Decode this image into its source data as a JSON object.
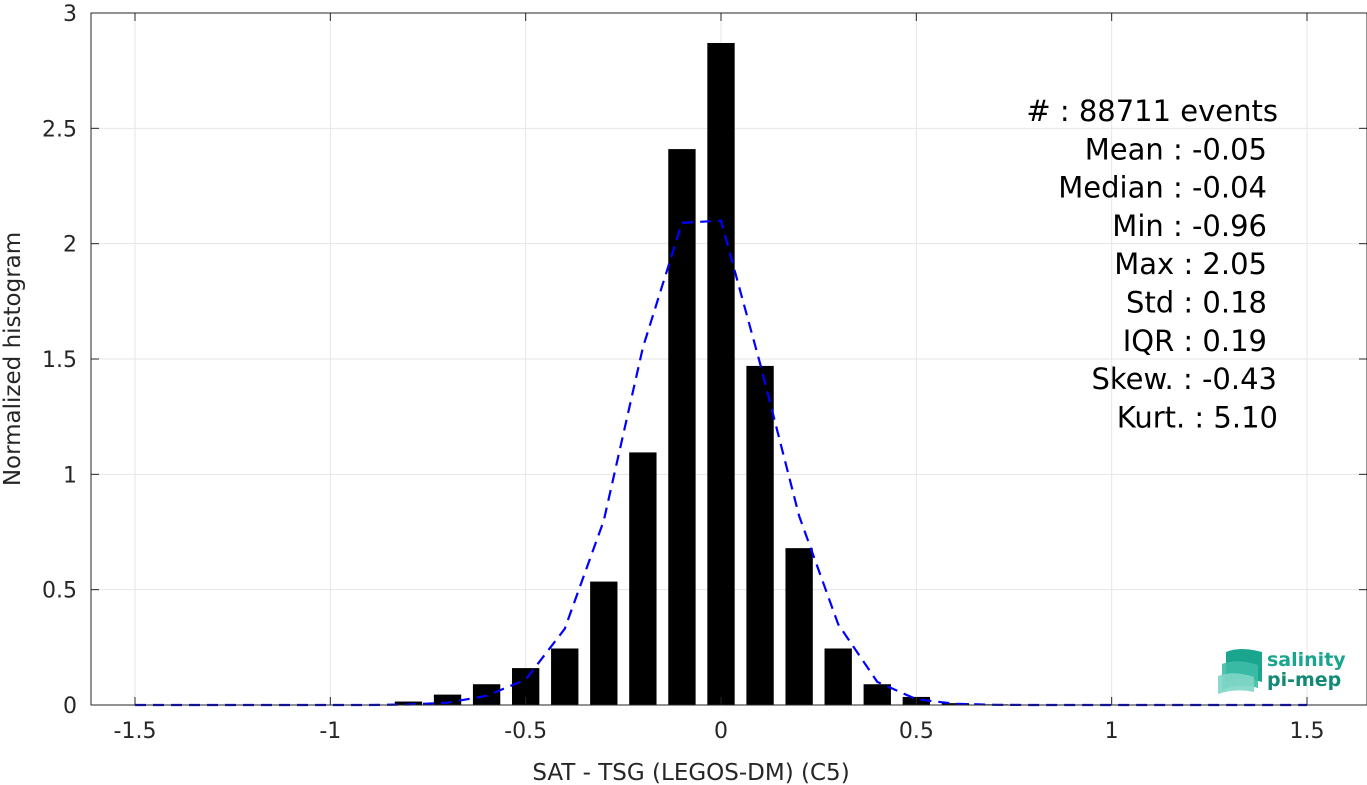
{
  "chart_data": {
    "type": "bar",
    "xlabel": "SAT - TSG (LEGOS-DM) (C5)",
    "ylabel": "Normalized histogram",
    "xlim": [
      -1.5,
      1.5
    ],
    "ylim": [
      0,
      3
    ],
    "grid": true,
    "x_ticks": [
      {
        "value": -1.5,
        "label": "-1.5"
      },
      {
        "value": -1,
        "label": "-1"
      },
      {
        "value": -0.5,
        "label": "-0.5"
      },
      {
        "value": 0,
        "label": "0"
      },
      {
        "value": 0.5,
        "label": "0.5"
      },
      {
        "value": 1,
        "label": "1"
      },
      {
        "value": 1.5,
        "label": "1.5"
      }
    ],
    "y_ticks": [
      {
        "value": 0,
        "label": "0"
      },
      {
        "value": 0.5,
        "label": "0.5"
      },
      {
        "value": 1,
        "label": "1"
      },
      {
        "value": 1.5,
        "label": "1.5"
      },
      {
        "value": 2,
        "label": "2"
      },
      {
        "value": 2.5,
        "label": "2.5"
      },
      {
        "value": 3,
        "label": "3"
      }
    ],
    "bar_width": 0.07,
    "bars": {
      "x": [
        -0.8,
        -0.7,
        -0.6,
        -0.5,
        -0.4,
        -0.3,
        -0.2,
        -0.1,
        0.0,
        0.1,
        0.2,
        0.3,
        0.4,
        0.5,
        0.6,
        0.7
      ],
      "values": [
        0.015,
        0.045,
        0.09,
        0.16,
        0.245,
        0.535,
        1.095,
        2.41,
        2.87,
        1.47,
        0.68,
        0.245,
        0.09,
        0.035,
        0.008,
        0.003
      ]
    },
    "fit_curve": {
      "style": "dashed",
      "color": "#0000ff",
      "x": [
        -1.5,
        -1.4,
        -1.3,
        -1.2,
        -1.1,
        -1.0,
        -0.9,
        -0.8,
        -0.7,
        -0.6,
        -0.5,
        -0.4,
        -0.3,
        -0.2,
        -0.1,
        0.0,
        0.1,
        0.2,
        0.3,
        0.4,
        0.5,
        0.6,
        0.7,
        0.8,
        0.9,
        1.0,
        1.1,
        1.2,
        1.3,
        1.4,
        1.5
      ],
      "y": [
        0,
        0,
        0,
        0,
        0,
        0,
        0,
        0.002,
        0.01,
        0.04,
        0.11,
        0.33,
        0.8,
        1.55,
        2.09,
        2.1,
        1.48,
        0.82,
        0.35,
        0.1,
        0.025,
        0.005,
        0.001,
        0,
        0,
        0,
        0,
        0,
        0,
        0,
        0
      ]
    },
    "bar_color": "#000000",
    "stats": [
      "#  : 88711 events",
      "Mean : -0.05",
      "Median : -0.04",
      "Min : -0.96",
      "Max : 2.05",
      "Std : 0.18",
      "IQR : 0.19",
      "Skew. : -0.43",
      "Kurt. : 5.10"
    ]
  },
  "logo": {
    "line1": "salinity",
    "line2": "pi-mep",
    "color": "#1aa58e"
  }
}
